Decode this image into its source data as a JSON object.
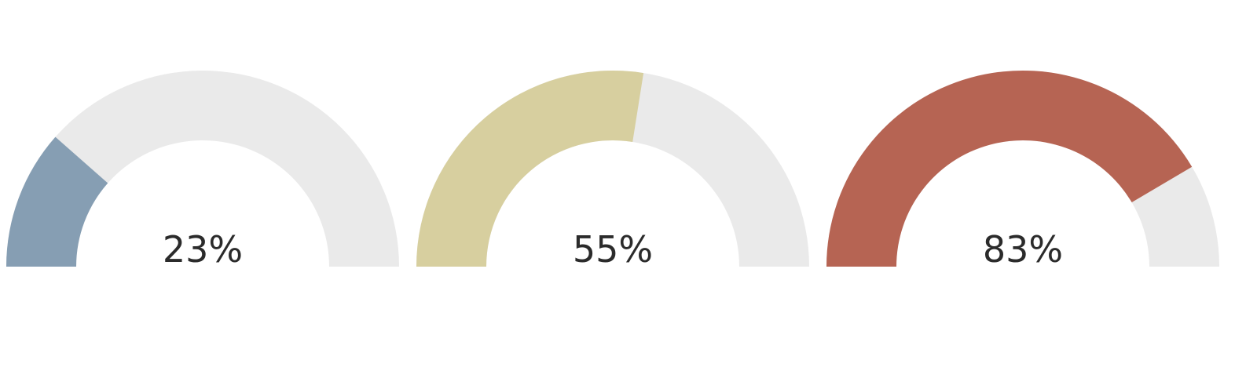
{
  "chart_data": [
    {
      "type": "gauge",
      "value": 23,
      "max": 100,
      "label": "23%",
      "color": "#869eb3",
      "track_color": "#eaeaea"
    },
    {
      "type": "gauge",
      "value": 55,
      "max": 100,
      "label": "55%",
      "color": "#d7cf9f",
      "track_color": "#eaeaea"
    },
    {
      "type": "gauge",
      "value": 83,
      "max": 100,
      "label": "83%",
      "color": "#b66453",
      "track_color": "#eaeaea"
    }
  ]
}
